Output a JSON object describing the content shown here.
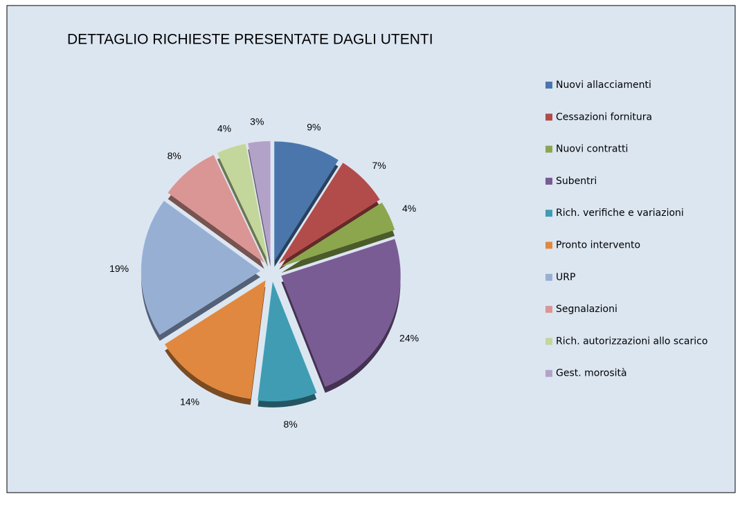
{
  "chart_data": {
    "type": "pie",
    "title": "DETTAGLIO RICHIESTE PRESENTATE DAGLI UTENTI",
    "categories": [
      "Nuovi allacciamenti",
      "Cessazioni fornitura",
      "Nuovi contratti",
      "Subentri",
      "Rich. verifiche e variazioni",
      "Pronto intervento",
      "URP",
      "Segnalazioni",
      "Rich. autorizzazioni allo scarico",
      "Gest. morosità"
    ],
    "values": [
      9,
      7,
      4,
      24,
      8,
      14,
      19,
      8,
      4,
      3
    ],
    "value_labels": [
      "9%",
      "7%",
      "4%",
      "24%",
      "8%",
      "14%",
      "19%",
      "8%",
      "4%",
      "3%"
    ],
    "colors": [
      "#4a76ab",
      "#b24c4a",
      "#8ba64d",
      "#7a5c94",
      "#3f9cb3",
      "#e0883f",
      "#98afd4",
      "#d99694",
      "#c3d69b",
      "#b3a2c7"
    ],
    "legend": "right"
  }
}
